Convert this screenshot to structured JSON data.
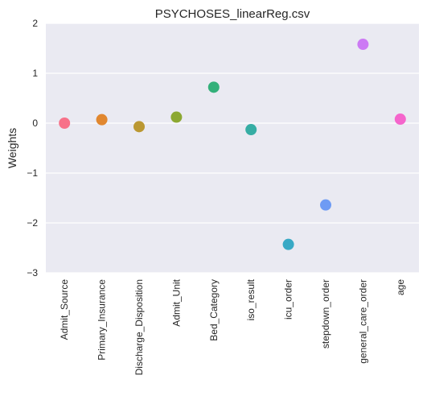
{
  "chart_data": {
    "type": "scatter",
    "title": "PSYCHOSES_linearReg.csv",
    "xlabel": "",
    "ylabel": "Weights",
    "ylim": [
      -3,
      2
    ],
    "yticks": [
      "2",
      "1",
      "0",
      "−1",
      "−2",
      "−3"
    ],
    "ytick_values": [
      2,
      1,
      0,
      -1,
      -2,
      -3
    ],
    "grid": true,
    "background": "#eaeaf2",
    "categories": [
      "Admit_Source",
      "Primary_Insurance",
      "Discharge_Disposition",
      "Admit_Unit",
      "Bed_Category",
      "iso_result",
      "icu_order",
      "stepdown_order",
      "general_care_order",
      "age"
    ],
    "values": [
      0.0,
      0.07,
      -0.07,
      0.12,
      0.72,
      -0.13,
      -2.43,
      -1.64,
      1.58,
      0.08
    ],
    "colors": [
      "#f77189",
      "#e1872f",
      "#bb9832",
      "#8ca832",
      "#33b07a",
      "#36ada4",
      "#38a9c5",
      "#6e9bf4",
      "#cc7af4",
      "#f565cc"
    ]
  }
}
